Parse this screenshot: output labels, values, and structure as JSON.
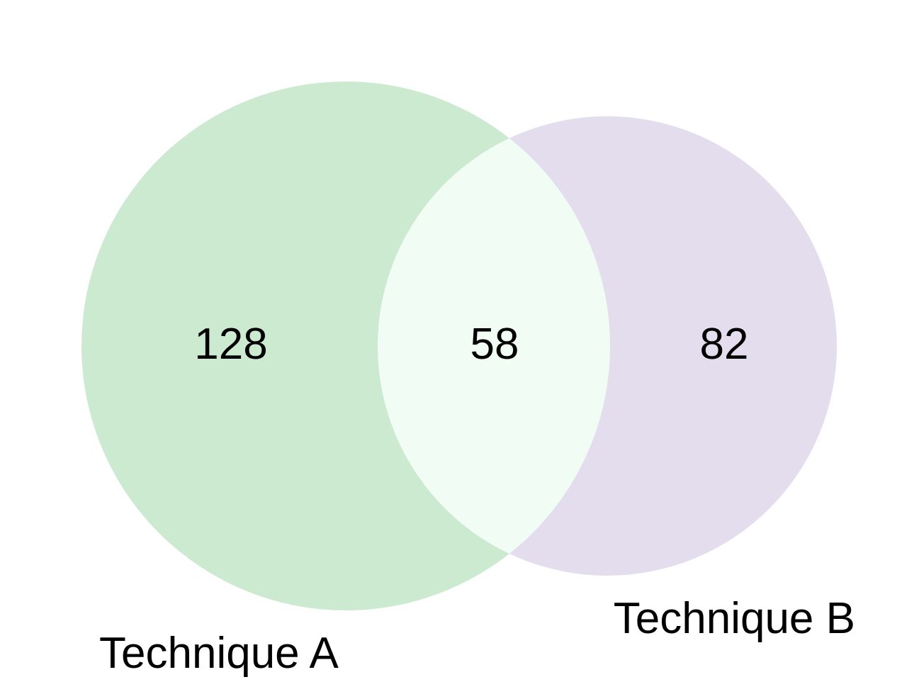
{
  "diagram": {
    "type": "venn-2",
    "sets": [
      {
        "id": "a",
        "label": "Technique A",
        "color": "#cbeacf"
      },
      {
        "id": "b",
        "label": "Technique B",
        "color": "#e3ddee"
      }
    ],
    "regions": {
      "only_a": "128",
      "a_and_b": "58",
      "only_b": "82"
    },
    "intersection_color": "#f0fcf4"
  }
}
